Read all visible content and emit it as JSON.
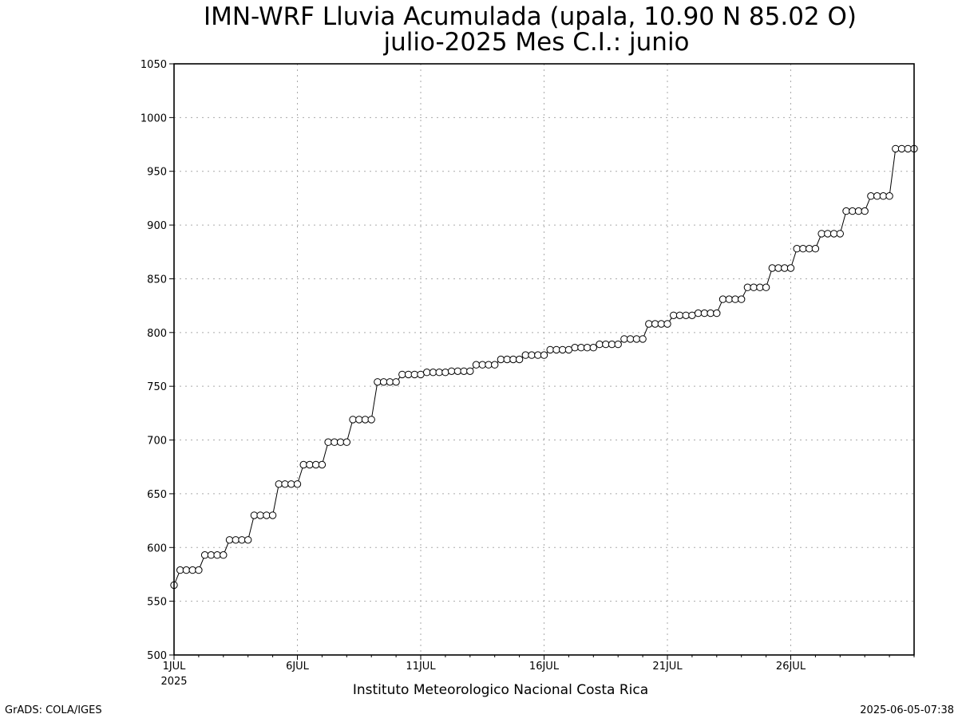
{
  "chart_data": {
    "type": "line",
    "title": "IMN-WRF  Lluvia Acumulada (upala, 10.90  N 85.02  O)",
    "subtitle": "julio-2025 Mes C.I.: junio",
    "xlabel": "Instituto Meteorologico Nacional Costa Rica",
    "ylabel": "",
    "ylim": [
      500,
      1050
    ],
    "xlim_days": [
      1,
      31
    ],
    "yticks": [
      500,
      550,
      600,
      650,
      700,
      750,
      800,
      850,
      900,
      950,
      1000,
      1050
    ],
    "xticks": [
      {
        "day": 1,
        "label": "1JUL"
      },
      {
        "day": 6,
        "label": "6JUL"
      },
      {
        "day": 11,
        "label": "11JUL"
      },
      {
        "day": 16,
        "label": "16JUL"
      },
      {
        "day": 21,
        "label": "21JUL"
      },
      {
        "day": 26,
        "label": "26JUL"
      }
    ],
    "year_label": "2025",
    "grid": true,
    "marker": "open-circle",
    "line_color": "#000000",
    "time_step_hours": 6,
    "start": "2025-07-01 00Z",
    "values": [
      565,
      579,
      579,
      579,
      579,
      593,
      593,
      593,
      593,
      607,
      607,
      607,
      607,
      630,
      630,
      630,
      630,
      659,
      659,
      659,
      659,
      677,
      677,
      677,
      677,
      698,
      698,
      698,
      698,
      719,
      719,
      719,
      719,
      754,
      754,
      754,
      754,
      761,
      761,
      761,
      761,
      763,
      763,
      763,
      763,
      764,
      764,
      764,
      764,
      770,
      770,
      770,
      770,
      775,
      775,
      775,
      775,
      779,
      779,
      779,
      779,
      784,
      784,
      784,
      784,
      786,
      786,
      786,
      786,
      789,
      789,
      789,
      789,
      794,
      794,
      794,
      794,
      808,
      808,
      808,
      808,
      816,
      816,
      816,
      816,
      818,
      818,
      818,
      818,
      831,
      831,
      831,
      831,
      842,
      842,
      842,
      842,
      860,
      860,
      860,
      860,
      878,
      878,
      878,
      878,
      892,
      892,
      892,
      892,
      913,
      913,
      913,
      913,
      927,
      927,
      927,
      927,
      971,
      971,
      971,
      971
    ]
  },
  "footer": {
    "left": "GrADS: COLA/IGES",
    "right": "2025-06-05-07:38"
  }
}
